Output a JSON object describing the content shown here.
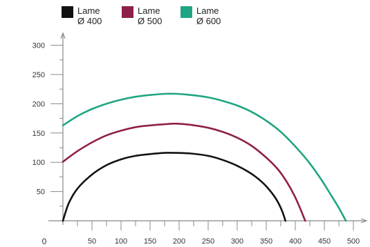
{
  "chart_data": {
    "type": "line",
    "title": "",
    "xlabel": "",
    "ylabel": "",
    "xlim": [
      0,
      520
    ],
    "ylim": [
      0,
      320
    ],
    "x_ticks_major": [
      50,
      100,
      150,
      200,
      250,
      300,
      350,
      400,
      450,
      500
    ],
    "x_ticks_minor": [
      25,
      75,
      125,
      175,
      225,
      275,
      325,
      375,
      425,
      475
    ],
    "y_ticks_major": [
      50,
      100,
      150,
      200,
      250,
      300
    ],
    "y_ticks_minor": [
      25,
      75,
      125,
      175,
      225,
      275
    ],
    "origin_label": "0",
    "grid": false,
    "legend_position": "top-left",
    "series": [
      {
        "name_line1": "Lame",
        "name_line2": "Ø 400",
        "color": "#111111",
        "points": [
          [
            0,
            0
          ],
          [
            10,
            30
          ],
          [
            25,
            55
          ],
          [
            50,
            79
          ],
          [
            75,
            95
          ],
          [
            100,
            105
          ],
          [
            125,
            111
          ],
          [
            150,
            114
          ],
          [
            175,
            116
          ],
          [
            195,
            116
          ],
          [
            220,
            115
          ],
          [
            250,
            111
          ],
          [
            275,
            104
          ],
          [
            300,
            94
          ],
          [
            325,
            80
          ],
          [
            345,
            64
          ],
          [
            360,
            47
          ],
          [
            370,
            32
          ],
          [
            378,
            15
          ],
          [
            383,
            0
          ]
        ]
      },
      {
        "name_line1": "Lame",
        "name_line2": "Ø 500",
        "color": "#8e1f48",
        "points": [
          [
            0,
            101
          ],
          [
            25,
            119
          ],
          [
            50,
            134
          ],
          [
            75,
            146
          ],
          [
            100,
            154
          ],
          [
            125,
            160
          ],
          [
            150,
            163
          ],
          [
            175,
            165
          ],
          [
            195,
            166
          ],
          [
            220,
            164
          ],
          [
            250,
            159
          ],
          [
            275,
            152
          ],
          [
            300,
            142
          ],
          [
            325,
            128
          ],
          [
            350,
            108
          ],
          [
            370,
            88
          ],
          [
            385,
            67
          ],
          [
            398,
            44
          ],
          [
            408,
            22
          ],
          [
            417,
            0
          ]
        ]
      },
      {
        "name_line1": "Lame",
        "name_line2": "Ø 600",
        "color": "#1fa584",
        "points": [
          [
            0,
            163
          ],
          [
            25,
            179
          ],
          [
            50,
            191
          ],
          [
            75,
            200
          ],
          [
            100,
            207
          ],
          [
            125,
            212
          ],
          [
            150,
            215
          ],
          [
            175,
            217
          ],
          [
            195,
            217
          ],
          [
            220,
            215
          ],
          [
            250,
            211
          ],
          [
            275,
            205
          ],
          [
            300,
            197
          ],
          [
            325,
            186
          ],
          [
            350,
            171
          ],
          [
            375,
            152
          ],
          [
            400,
            127
          ],
          [
            425,
            98
          ],
          [
            445,
            70
          ],
          [
            462,
            43
          ],
          [
            475,
            22
          ],
          [
            487,
            0
          ]
        ]
      }
    ]
  }
}
